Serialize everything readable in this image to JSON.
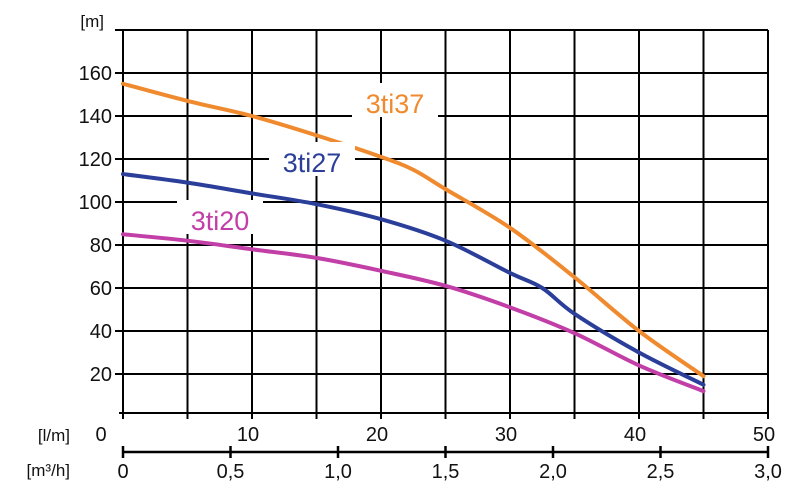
{
  "chart_data": {
    "type": "line",
    "title": "",
    "ylabel": "[m]",
    "xlabel": "[l/m]",
    "xlabel2": "[m³/h]",
    "xlim": [
      0,
      50
    ],
    "ylim": [
      0,
      180
    ],
    "grid": true,
    "y_ticks": [
      "20",
      "40",
      "60",
      "80",
      "100",
      "120",
      "140",
      "160"
    ],
    "y_tick_values": [
      20,
      40,
      60,
      80,
      100,
      120,
      140,
      160
    ],
    "x_ticks": [
      "0",
      "10",
      "20",
      "30",
      "40",
      "50"
    ],
    "x_tick_values": [
      0,
      10,
      20,
      30,
      40,
      50
    ],
    "x2_ticks": [
      "0",
      "0,5",
      "1,0",
      "1,5",
      "2,0",
      "2,5",
      "3,0"
    ],
    "x2_tick_values": [
      0,
      0.5,
      1.0,
      1.5,
      2.0,
      2.5,
      3.0
    ],
    "x2_lim": [
      0,
      3.0
    ],
    "series": [
      {
        "name": "3ti37",
        "color": "#f08a2e",
        "x": [
          0,
          5,
          10,
          15,
          20,
          22.5,
          25,
          30,
          35,
          40,
          45
        ],
        "y": [
          155,
          147,
          140,
          131,
          121,
          115,
          106,
          88,
          65,
          40,
          19
        ]
      },
      {
        "name": "3ti27",
        "color": "#2b3f9a",
        "x": [
          0,
          5,
          10,
          15,
          20,
          25,
          30,
          32.5,
          35,
          40,
          45
        ],
        "y": [
          113,
          109,
          104,
          99,
          92,
          82,
          67,
          60,
          48,
          30,
          15
        ]
      },
      {
        "name": "3ti20",
        "color": "#c23fa8",
        "x": [
          0,
          5,
          10,
          15,
          20,
          25,
          30,
          35,
          40,
          45
        ],
        "y": [
          85,
          82,
          78,
          74,
          68,
          61,
          51,
          39,
          24,
          12
        ]
      }
    ]
  }
}
